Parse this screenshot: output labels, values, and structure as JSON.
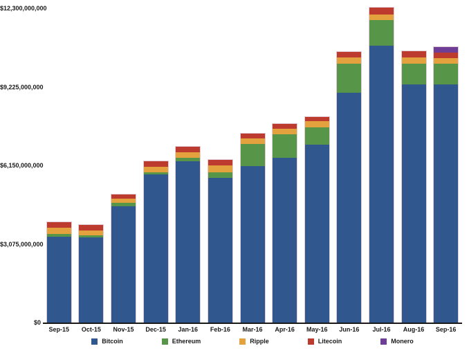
{
  "chart_data": {
    "type": "bar",
    "stacked": true,
    "title": "",
    "xlabel": "",
    "ylabel": "",
    "values_unit": "USD billions",
    "grid": false,
    "legend_position": "bottom",
    "ylim": [
      0,
      12.3
    ],
    "y_ticks": [
      {
        "value": 0,
        "label": "$0"
      },
      {
        "value": 3.075,
        "label": "$3,075,000,000"
      },
      {
        "value": 6.15,
        "label": "$6,150,000,000"
      },
      {
        "value": 9.225,
        "label": "$9,225,000,000"
      },
      {
        "value": 12.3,
        "label": "$12,300,000,000"
      }
    ],
    "categories": [
      "Sep-15",
      "Oct-15",
      "Nov-15",
      "Dec-15",
      "Jan-16",
      "Feb-16",
      "Mar-16",
      "Apr-16",
      "May-16",
      "Jun-16",
      "Jul-16",
      "Aug-16",
      "Sep-16"
    ],
    "series": [
      {
        "name": "Bitcoin",
        "color": "#30588e",
        "values": [
          3.36,
          3.33,
          4.55,
          5.8,
          6.3,
          5.67,
          6.12,
          6.44,
          6.96,
          8.99,
          10.85,
          9.33,
          9.33
        ]
      },
      {
        "name": "Ethereum",
        "color": "#579649",
        "values": [
          0.12,
          0.08,
          0.13,
          0.09,
          0.14,
          0.21,
          0.86,
          0.93,
          0.68,
          1.15,
          0.98,
          0.81,
          0.79
        ]
      },
      {
        "name": "Ripple",
        "color": "#e3a23d",
        "values": [
          0.23,
          0.19,
          0.16,
          0.2,
          0.23,
          0.27,
          0.24,
          0.22,
          0.24,
          0.24,
          0.23,
          0.24,
          0.24
        ]
      },
      {
        "name": "Litecoin",
        "color": "#bd3a2f",
        "values": [
          0.22,
          0.22,
          0.18,
          0.21,
          0.22,
          0.22,
          0.18,
          0.18,
          0.18,
          0.21,
          0.26,
          0.24,
          0.22
        ]
      },
      {
        "name": "Monero",
        "color": "#6e3e96",
        "values": [
          0,
          0,
          0,
          0,
          0,
          0,
          0,
          0,
          0,
          0,
          0,
          0,
          0.21
        ]
      }
    ],
    "totals": [
      3.93,
      3.82,
      5.02,
      6.3,
      6.89,
      6.37,
      7.4,
      7.77,
      8.06,
      10.59,
      12.32,
      10.62,
      10.79
    ]
  }
}
